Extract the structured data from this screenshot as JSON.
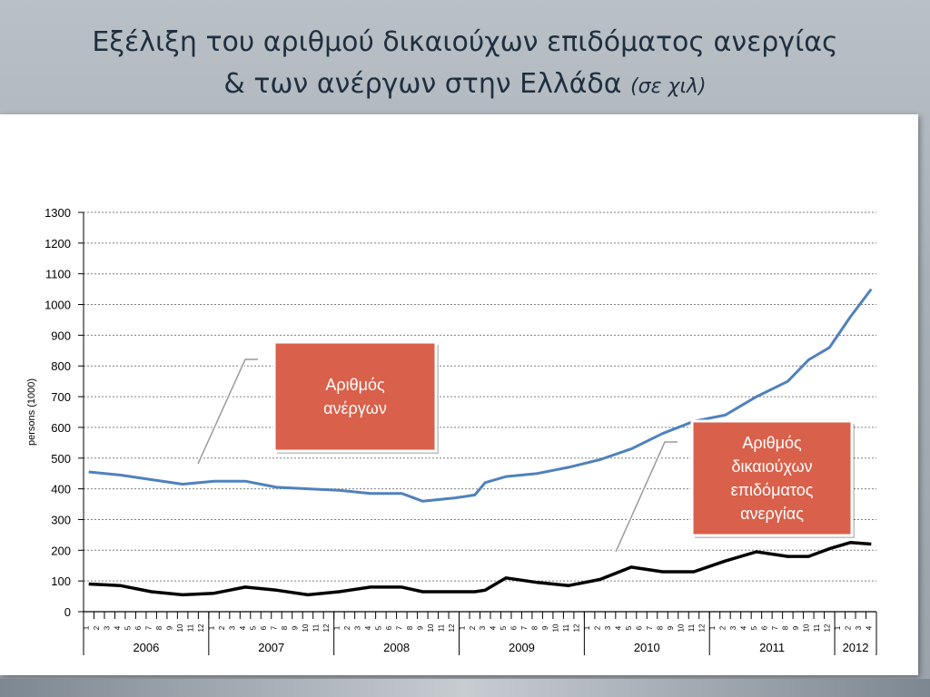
{
  "title_line1": "Εξέλιξη του αριθμού δικαιούχων επιδόματος ανεργίας",
  "title_line2": "& των ανέργων στην Ελλάδα",
  "title_unit": "(σε χιλ)",
  "colors": {
    "unemployed": "#4f81bd",
    "beneficiaries": "#000000",
    "callout": "#d9604a",
    "grid": "#7f7f7f"
  },
  "chart_data": {
    "type": "line",
    "title": "",
    "xlabel": "",
    "ylabel": "persons (1000)",
    "ylim": [
      0,
      1300
    ],
    "yticks": [
      0,
      100,
      200,
      300,
      400,
      500,
      600,
      700,
      800,
      900,
      1000,
      1100,
      1200,
      1300
    ],
    "grid": true,
    "years": [
      "2006",
      "2007",
      "2008",
      "2009",
      "2010",
      "2011",
      "2012"
    ],
    "month_labels": [
      "1",
      "2",
      "3",
      "4",
      "5",
      "6",
      "7",
      "8",
      "9",
      "10",
      "11",
      "12"
    ],
    "x_start": "2006-01",
    "x_end": "2012-04",
    "series": [
      {
        "name": "Αριθμός ανέργων",
        "x": [
          "2006-01",
          "2006-04",
          "2006-07",
          "2006-10",
          "2007-01",
          "2007-04",
          "2007-07",
          "2007-10",
          "2008-01",
          "2008-04",
          "2008-07",
          "2008-09",
          "2008-12",
          "2009-02",
          "2009-03",
          "2009-05",
          "2009-08",
          "2009-11",
          "2010-02",
          "2010-05",
          "2010-08",
          "2010-11",
          "2011-02",
          "2011-05",
          "2011-08",
          "2011-10",
          "2011-12",
          "2012-02",
          "2012-04"
        ],
        "values": [
          455,
          445,
          430,
          415,
          425,
          425,
          405,
          400,
          395,
          385,
          385,
          360,
          370,
          380,
          420,
          440,
          450,
          470,
          495,
          530,
          580,
          620,
          640,
          700,
          750,
          820,
          860,
          960,
          1050
        ]
      },
      {
        "name": "Αριθμός δικαιούχων επιδόματος ανεργίας",
        "x": [
          "2006-01",
          "2006-04",
          "2006-07",
          "2006-10",
          "2007-01",
          "2007-04",
          "2007-07",
          "2007-10",
          "2008-01",
          "2008-04",
          "2008-07",
          "2008-09",
          "2008-12",
          "2009-02",
          "2009-03",
          "2009-05",
          "2009-08",
          "2009-11",
          "2010-02",
          "2010-05",
          "2010-08",
          "2010-11",
          "2011-02",
          "2011-05",
          "2011-08",
          "2011-10",
          "2011-12",
          "2012-02",
          "2012-04"
        ],
        "values": [
          90,
          85,
          65,
          55,
          60,
          80,
          70,
          55,
          65,
          80,
          80,
          65,
          65,
          65,
          70,
          110,
          95,
          85,
          105,
          145,
          130,
          130,
          165,
          195,
          180,
          180,
          205,
          225,
          220
        ]
      }
    ],
    "annotations": [
      "Αριθμός ανέργων",
      "Αριθμός δικαιούχων επιδόματος ανεργίας"
    ]
  }
}
